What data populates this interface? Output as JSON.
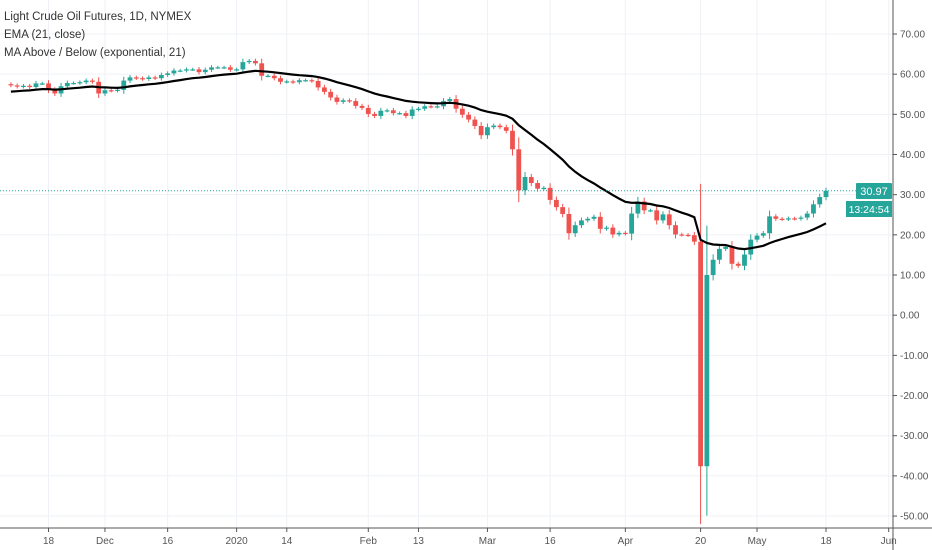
{
  "legend": {
    "title": "Light Crude Oil Futures, 1D, NYMEX",
    "indicator_1": "EMA (21, close)",
    "indicator_2": "MA Above / Below (exponential, 21)"
  },
  "last_price_label": "30.97",
  "countdown_label": "13:24:54",
  "colors": {
    "up": "#26a69a",
    "down": "#ef5350",
    "ema": "#000000",
    "grid": "#eef1f6",
    "price_line": "#26a69a"
  },
  "chart_data": {
    "type": "candlestick",
    "title": "Light Crude Oil Futures, 1D, NYMEX",
    "ylim": [
      -50,
      75
    ],
    "y_ticks": [
      70,
      60,
      50,
      40,
      30,
      20,
      10,
      0,
      -10,
      -20,
      -30,
      -40,
      -50
    ],
    "y_tick_labels": [
      "70.00",
      "60.00",
      "50.00",
      "40.00",
      "30.00",
      "20.00",
      "10.00",
      "0.00",
      "-10.00",
      "-20.00",
      "-30.00",
      "-40.00",
      "-50.00"
    ],
    "x_ticks": [
      {
        "label": "18",
        "index": 6
      },
      {
        "label": "Dec",
        "index": 15
      },
      {
        "label": "16",
        "index": 25
      },
      {
        "label": "2020",
        "index": 36
      },
      {
        "label": "14",
        "index": 44
      },
      {
        "label": "Feb",
        "index": 57
      },
      {
        "label": "13",
        "index": 65
      },
      {
        "label": "Mar",
        "index": 76
      },
      {
        "label": "16",
        "index": 86
      },
      {
        "label": "Apr",
        "index": 98
      },
      {
        "label": "20",
        "index": 110
      },
      {
        "label": "May",
        "index": 119
      },
      {
        "label": "18",
        "index": 130
      },
      {
        "label": "Jun",
        "index": 140
      }
    ],
    "ema_period": 21,
    "ema_seed": 55.5,
    "last_price": 30.97,
    "closes": [
      57.2,
      56.9,
      57.1,
      56.8,
      57.7,
      57.7,
      56.1,
      55.2,
      57.0,
      57.8,
      57.8,
      58.0,
      58.4,
      58.1,
      55.2,
      56.0,
      55.9,
      56.1,
      58.4,
      59.2,
      59.0,
      58.8,
      59.2,
      59.0,
      59.8,
      60.2,
      60.9,
      60.9,
      61.2,
      61.2,
      60.5,
      61.1,
      61.7,
      61.7,
      61.7,
      61.1,
      61.2,
      63.0,
      63.3,
      62.7,
      59.6,
      59.6,
      59.0,
      58.1,
      58.2,
      58.0,
      58.5,
      58.5,
      58.3,
      56.7,
      55.6,
      54.2,
      53.1,
      53.5,
      53.3,
      52.1,
      51.6,
      50.1,
      49.6,
      50.9,
      51.0,
      50.3,
      50.3,
      49.6,
      51.2,
      51.4,
      52.0,
      51.9,
      52.0,
      53.3,
      53.8,
      51.4,
      49.9,
      48.7,
      47.1,
      44.8,
      46.8,
      47.2,
      46.8,
      45.9,
      41.3,
      31.1,
      34.4,
      32.9,
      31.5,
      31.7,
      28.7,
      26.9,
      25.2,
      20.4,
      22.4,
      23.6,
      24.0,
      24.5,
      21.5,
      21.8,
      20.1,
      20.5,
      20.3,
      25.3,
      28.3,
      26.1,
      26.1,
      23.6,
      25.1,
      22.4,
      20.1,
      20.0,
      19.9,
      18.3,
      -37.6,
      10.0,
      13.8,
      16.5,
      17.0,
      12.8,
      12.3,
      15.1,
      18.8,
      19.8,
      20.4,
      24.6,
      24.0,
      23.9,
      24.1,
      24.0,
      24.3,
      25.3,
      27.6,
      29.4,
      30.97
    ]
  }
}
